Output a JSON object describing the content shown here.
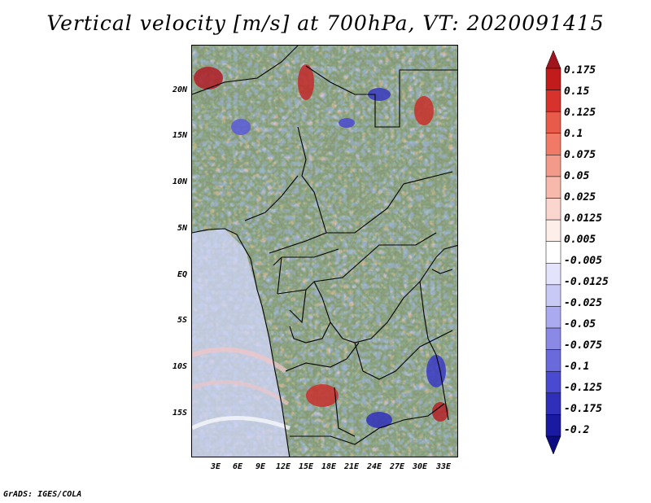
{
  "title": "Vertical velocity [m/s] at 700hPa, VT: 2020091415",
  "footer": "GrADS: IGES/COLA",
  "lat_labels": [
    "20N",
    "15N",
    "10N",
    "5N",
    "EQ",
    "5S",
    "10S",
    "15S"
  ],
  "lon_labels": [
    "3E",
    "6E",
    "9E",
    "12E",
    "15E",
    "18E",
    "21E",
    "24E",
    "27E",
    "30E",
    "33E"
  ],
  "colorbar": {
    "levels": [
      "0.175",
      "0.15",
      "0.125",
      "0.1",
      "0.075",
      "0.05",
      "0.025",
      "0.0125",
      "0.005",
      "-0.005",
      "-0.0125",
      "-0.025",
      "-0.05",
      "-0.075",
      "-0.1",
      "-0.125",
      "-0.175",
      "-0.2"
    ],
    "colors": [
      "#a0141e",
      "#c21b1b",
      "#d8322c",
      "#e85a4a",
      "#f07a66",
      "#f49a8a",
      "#f8b9ad",
      "#fbd6ce",
      "#fdeeea",
      "#ffffff",
      "#e3e3fb",
      "#c9c9f6",
      "#aaaaf0",
      "#8a8ae6",
      "#6a6adc",
      "#4a4ad0",
      "#2f2fba",
      "#1a1aa0",
      "#0c0c80"
    ]
  },
  "icons": {
    "map": "vertical-velocity-field-map"
  }
}
